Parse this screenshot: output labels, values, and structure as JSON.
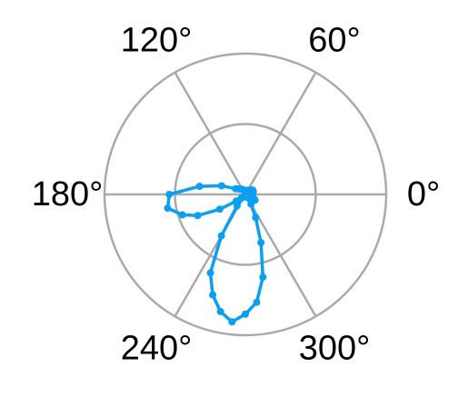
{
  "chart_data": {
    "type": "line",
    "projection": "polar",
    "title": "",
    "angle_unit": "deg",
    "radial_range": [
      0,
      1
    ],
    "radial_grid": [
      0.5,
      1.0
    ],
    "radial_tick_labels_visible": false,
    "angular_grid": [
      0,
      60,
      120,
      180,
      240,
      300
    ],
    "angular_tick_labels": [
      "0°",
      "60°",
      "120°",
      "180°",
      "240°",
      "300°"
    ],
    "grid": true,
    "legend": "none",
    "series": [
      {
        "color": "#0a9ff2",
        "marker": "circle",
        "theta": [
          0,
          10,
          20,
          30,
          40,
          50,
          60,
          70,
          80,
          90,
          100,
          110,
          120,
          130,
          140,
          150,
          160,
          170,
          180,
          190,
          198,
          204,
          210,
          216,
          222,
          228,
          234,
          240,
          246,
          252,
          258,
          264,
          270,
          276,
          282,
          288,
          294,
          300,
          310,
          320,
          330,
          340,
          350,
          360
        ],
        "r": [
          0.04,
          0.05,
          0.06,
          0.06,
          0.05,
          0.04,
          0.03,
          0.03,
          0.02,
          0.02,
          0.03,
          0.03,
          0.04,
          0.05,
          0.06,
          0.08,
          0.18,
          0.33,
          0.54,
          0.56,
          0.47,
          0.37,
          0.21,
          0.08,
          0.04,
          0.03,
          0.1,
          0.34,
          0.61,
          0.75,
          0.85,
          0.91,
          0.85,
          0.77,
          0.6,
          0.36,
          0.18,
          0.08,
          0.04,
          0.05,
          0.08,
          0.06,
          0.05,
          0.04
        ]
      }
    ]
  }
}
